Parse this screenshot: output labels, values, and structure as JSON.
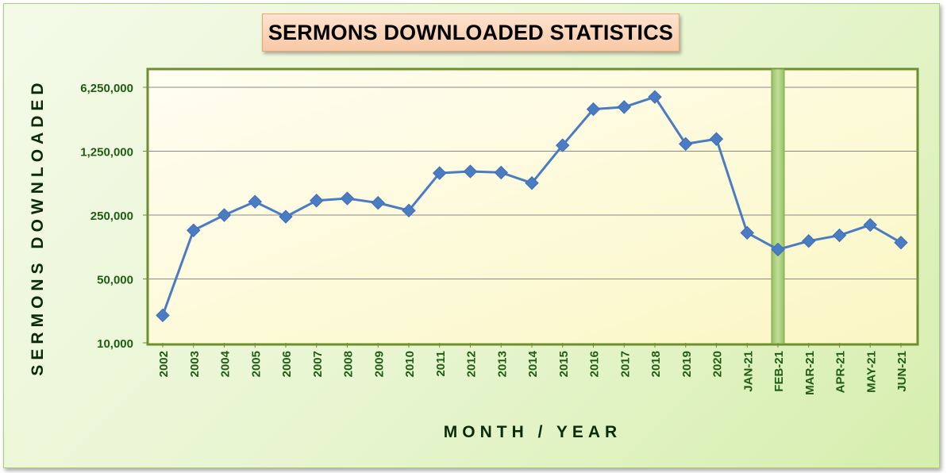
{
  "chart_data": {
    "type": "line",
    "title": "SERMONS DOWNLOADED STATISTICS",
    "xlabel": "MONTH / YEAR",
    "ylabel": "SERMONS DOWNLOADED",
    "y_scale": "log",
    "ylim": [
      10000,
      6250000
    ],
    "y_ticks": [
      10000,
      50000,
      250000,
      1250000,
      6250000
    ],
    "y_tick_labels": [
      "10,000",
      "50,000",
      "250,000",
      "1,250,000",
      "6,250,000"
    ],
    "grid": true,
    "legend": "none",
    "categories": [
      "2002",
      "2003",
      "2004",
      "2005",
      "2006",
      "2007",
      "2008",
      "2009",
      "2010",
      "2011",
      "2012",
      "2013",
      "2014",
      "2015",
      "2016",
      "2017",
      "2018",
      "2019",
      "2020",
      "JAN-21",
      "FEB-21",
      "MAR-21",
      "APR-21",
      "MAY-21",
      "JUN-21"
    ],
    "series": [
      {
        "color": "#4a7cc4",
        "marker": "diamond",
        "values": [
          20000,
          170000,
          250000,
          350000,
          240000,
          360000,
          380000,
          340000,
          280000,
          720000,
          750000,
          730000,
          560000,
          1450000,
          3600000,
          3800000,
          4900000,
          1500000,
          1700000,
          160000,
          105000,
          130000,
          150000,
          195000,
          125000
        ]
      }
    ],
    "highlight": {
      "category": "FEB-21",
      "color": "#a9cf7a"
    }
  }
}
